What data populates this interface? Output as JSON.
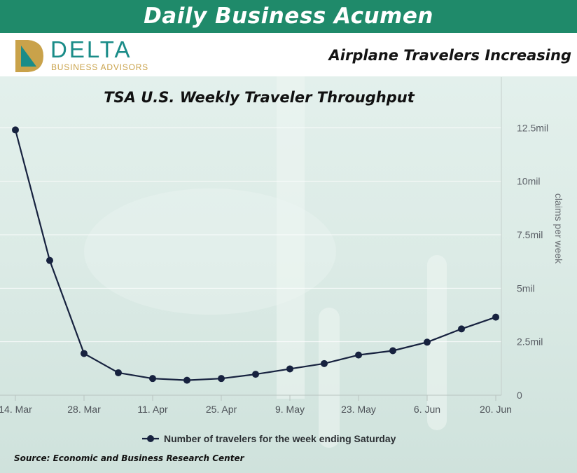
{
  "banner": {
    "title": "Daily Business Acumen"
  },
  "logo": {
    "word": "DELTA",
    "sub": "BUSINESS ADVISORS"
  },
  "header": {
    "headline": "Airplane Travelers Increasing"
  },
  "colors": {
    "banner": "#1f8a6a",
    "line": "#17223f",
    "logo_teal": "#1a8c88",
    "logo_gold": "#c9a24a"
  },
  "chart_data": {
    "type": "line",
    "title": "TSA U.S. Weekly Traveler Throughput",
    "ylabel": "claims per week",
    "ylim": [
      0,
      12.5
    ],
    "y_unit": "mil",
    "y_ticks": [
      {
        "value": 0,
        "label": "0"
      },
      {
        "value": 2.5,
        "label": "2.5mil"
      },
      {
        "value": 5,
        "label": "5mil"
      },
      {
        "value": 7.5,
        "label": "7.5mil"
      },
      {
        "value": 10,
        "label": "10mil"
      },
      {
        "value": 12.5,
        "label": "12.5mil"
      }
    ],
    "x": [
      "14. Mar",
      "21. Mar",
      "28. Mar",
      "4. Apr",
      "11. Apr",
      "18. Apr",
      "25. Apr",
      "2. May",
      "9. May",
      "16. May",
      "23. May",
      "30. May",
      "6. Jun",
      "13. Jun",
      "20. Jun"
    ],
    "x_tick_labels": [
      "14. Mar",
      "28. Mar",
      "11. Apr",
      "25. Apr",
      "9. May",
      "23. May",
      "6. Jun",
      "20. Jun"
    ],
    "series": [
      {
        "name": "Number of travelers for the week ending Saturday",
        "values": [
          12.4,
          6.3,
          1.95,
          1.05,
          0.78,
          0.7,
          0.78,
          0.98,
          1.23,
          1.48,
          1.88,
          2.08,
          2.48,
          3.1,
          3.65
        ]
      }
    ],
    "legend": "bottom",
    "grid": true
  },
  "source": "Source: Economic and Business Research Center"
}
